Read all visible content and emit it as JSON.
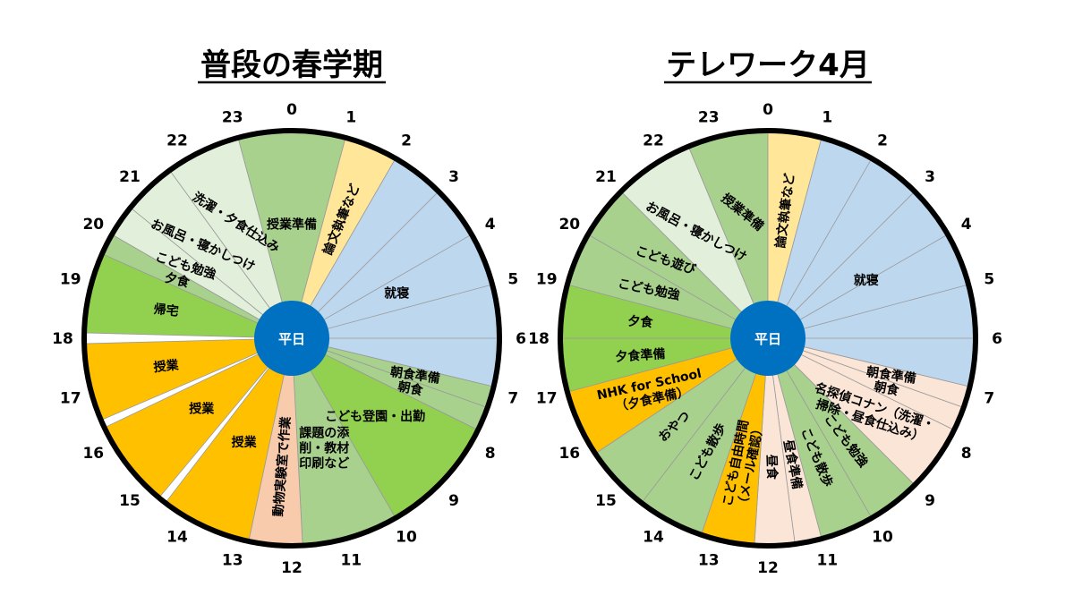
{
  "chart_data": [
    {
      "type": "pie",
      "title": "普段の春学期",
      "center_label": "平日",
      "hour_ticks": [
        "0",
        "1",
        "2",
        "3",
        "4",
        "5",
        "6",
        "7",
        "8",
        "9",
        "10",
        "11",
        "12",
        "13",
        "14",
        "15",
        "16",
        "17",
        "18",
        "19",
        "20",
        "21",
        "22",
        "23"
      ],
      "segments": [
        {
          "label": "授業準備",
          "start": 23.0,
          "end": 1.0,
          "color": "#a9d18e"
        },
        {
          "label": "論文執筆など",
          "start": 1.0,
          "end": 2.0,
          "color": "#ffe699",
          "vertical": true
        },
        {
          "label": "就寝",
          "start": 2.0,
          "end": 6.9,
          "color": "#bdd7ee",
          "hour_lines": true
        },
        {
          "label": "朝食準備",
          "start": 6.9,
          "end": 7.3,
          "color": "#a9d18e"
        },
        {
          "label": "朝食",
          "start": 7.3,
          "end": 7.75,
          "color": "#a9d18e"
        },
        {
          "label": "こども登園・出勤",
          "start": 7.75,
          "end": 10.0,
          "color": "#92d050"
        },
        {
          "label": "課題の添削・教材印刷など",
          "lines": [
            "課題の添",
            "削・教材",
            "印刷など"
          ],
          "start": 10.0,
          "end": 11.8,
          "color": "#a9d18e"
        },
        {
          "label": "動物実験室で作業",
          "start": 11.8,
          "end": 12.8,
          "color": "#f8cbad",
          "vertical": true
        },
        {
          "label": "授業",
          "start": 12.8,
          "end": 14.5,
          "color": "#ffc000"
        },
        {
          "label": "授業",
          "start": 14.65,
          "end": 16.3,
          "color": "#ffc000"
        },
        {
          "label": "授業",
          "start": 16.45,
          "end": 17.9,
          "color": "#ffc000"
        },
        {
          "label": "帰宅",
          "start": 18.1,
          "end": 19.6,
          "color": "#92d050"
        },
        {
          "label": "夕食",
          "start": 19.6,
          "end": 20.0,
          "color": "#a9d18e"
        },
        {
          "label": "こども勉強",
          "start": 20.0,
          "end": 20.6,
          "color": "#e2efda"
        },
        {
          "label": "お風呂・寝かしつけ",
          "start": 20.6,
          "end": 21.6,
          "color": "#e2efda"
        },
        {
          "label": "洗濯・夕食仕込み",
          "start": 21.6,
          "end": 23.0,
          "color": "#e2efda"
        }
      ]
    },
    {
      "type": "pie",
      "title": "テレワーク4月",
      "center_label": "平日",
      "hour_ticks": [
        "0",
        "1",
        "2",
        "3",
        "4",
        "5",
        "6",
        "7",
        "8",
        "9",
        "10",
        "11",
        "12",
        "13",
        "14",
        "15",
        "16",
        "17",
        "18",
        "19",
        "20",
        "21",
        "22",
        "23"
      ],
      "segments": [
        {
          "label": "授業準備",
          "start": 22.5,
          "end": 0.0,
          "color": "#a9d18e"
        },
        {
          "label": "論文執筆など",
          "start": 0.0,
          "end": 1.0,
          "color": "#ffe699",
          "vertical": true
        },
        {
          "label": "就寝",
          "start": 1.0,
          "end": 6.9,
          "color": "#bdd7ee",
          "hour_lines": true
        },
        {
          "label": "朝食準備",
          "start": 6.9,
          "end": 7.3,
          "color": "#fbe5d6"
        },
        {
          "label": "朝食",
          "start": 7.3,
          "end": 7.75,
          "color": "#fbe5d6"
        },
        {
          "label": "名探偵コナン（洗濯・掃除・昼食仕込み）",
          "lines": [
            "名探偵コナン（洗濯・",
            "掃除・昼食仕込み）"
          ],
          "start": 7.75,
          "end": 9.0,
          "color": "#fbe5d6"
        },
        {
          "label": "こども勉強",
          "start": 9.0,
          "end": 10.0,
          "color": "#a9d18e",
          "vertical": true
        },
        {
          "label": "こども散歩",
          "start": 10.0,
          "end": 11.0,
          "color": "#a9d18e",
          "vertical": true
        },
        {
          "label": "昼食準備",
          "start": 11.0,
          "end": 11.5,
          "color": "#fbe5d6",
          "vertical": true
        },
        {
          "label": "昼食",
          "start": 11.5,
          "end": 12.25,
          "color": "#fbe5d6",
          "vertical": true
        },
        {
          "label": "こども自由時間（メール確認）",
          "lines": [
            "こども自由時間",
            "（メール確認）"
          ],
          "start": 12.25,
          "end": 13.25,
          "color": "#ffc000",
          "vertical": true
        },
        {
          "label": "こども散歩",
          "start": 13.25,
          "end": 14.5,
          "color": "#a9d18e",
          "vertical": true
        },
        {
          "label": "おやつ",
          "start": 14.5,
          "end": 15.75,
          "color": "#a9d18e",
          "vertical": true
        },
        {
          "label": "NHK for School（夕食準備）",
          "lines": [
            "NHK for School",
            "（夕食準備）"
          ],
          "start": 15.75,
          "end": 17.0,
          "color": "#ffc000"
        },
        {
          "label": "夕食準備",
          "start": 17.0,
          "end": 18.0,
          "color": "#92d050"
        },
        {
          "label": "夕食",
          "start": 18.0,
          "end": 19.0,
          "color": "#92d050"
        },
        {
          "label": "こども勉強",
          "start": 19.0,
          "end": 20.0,
          "color": "#a9d18e"
        },
        {
          "label": "こども遊び",
          "start": 20.0,
          "end": 21.0,
          "color": "#a9d18e"
        },
        {
          "label": "お風呂・寝かしつけ",
          "start": 21.0,
          "end": 22.5,
          "color": "#e2efda"
        }
      ]
    }
  ]
}
